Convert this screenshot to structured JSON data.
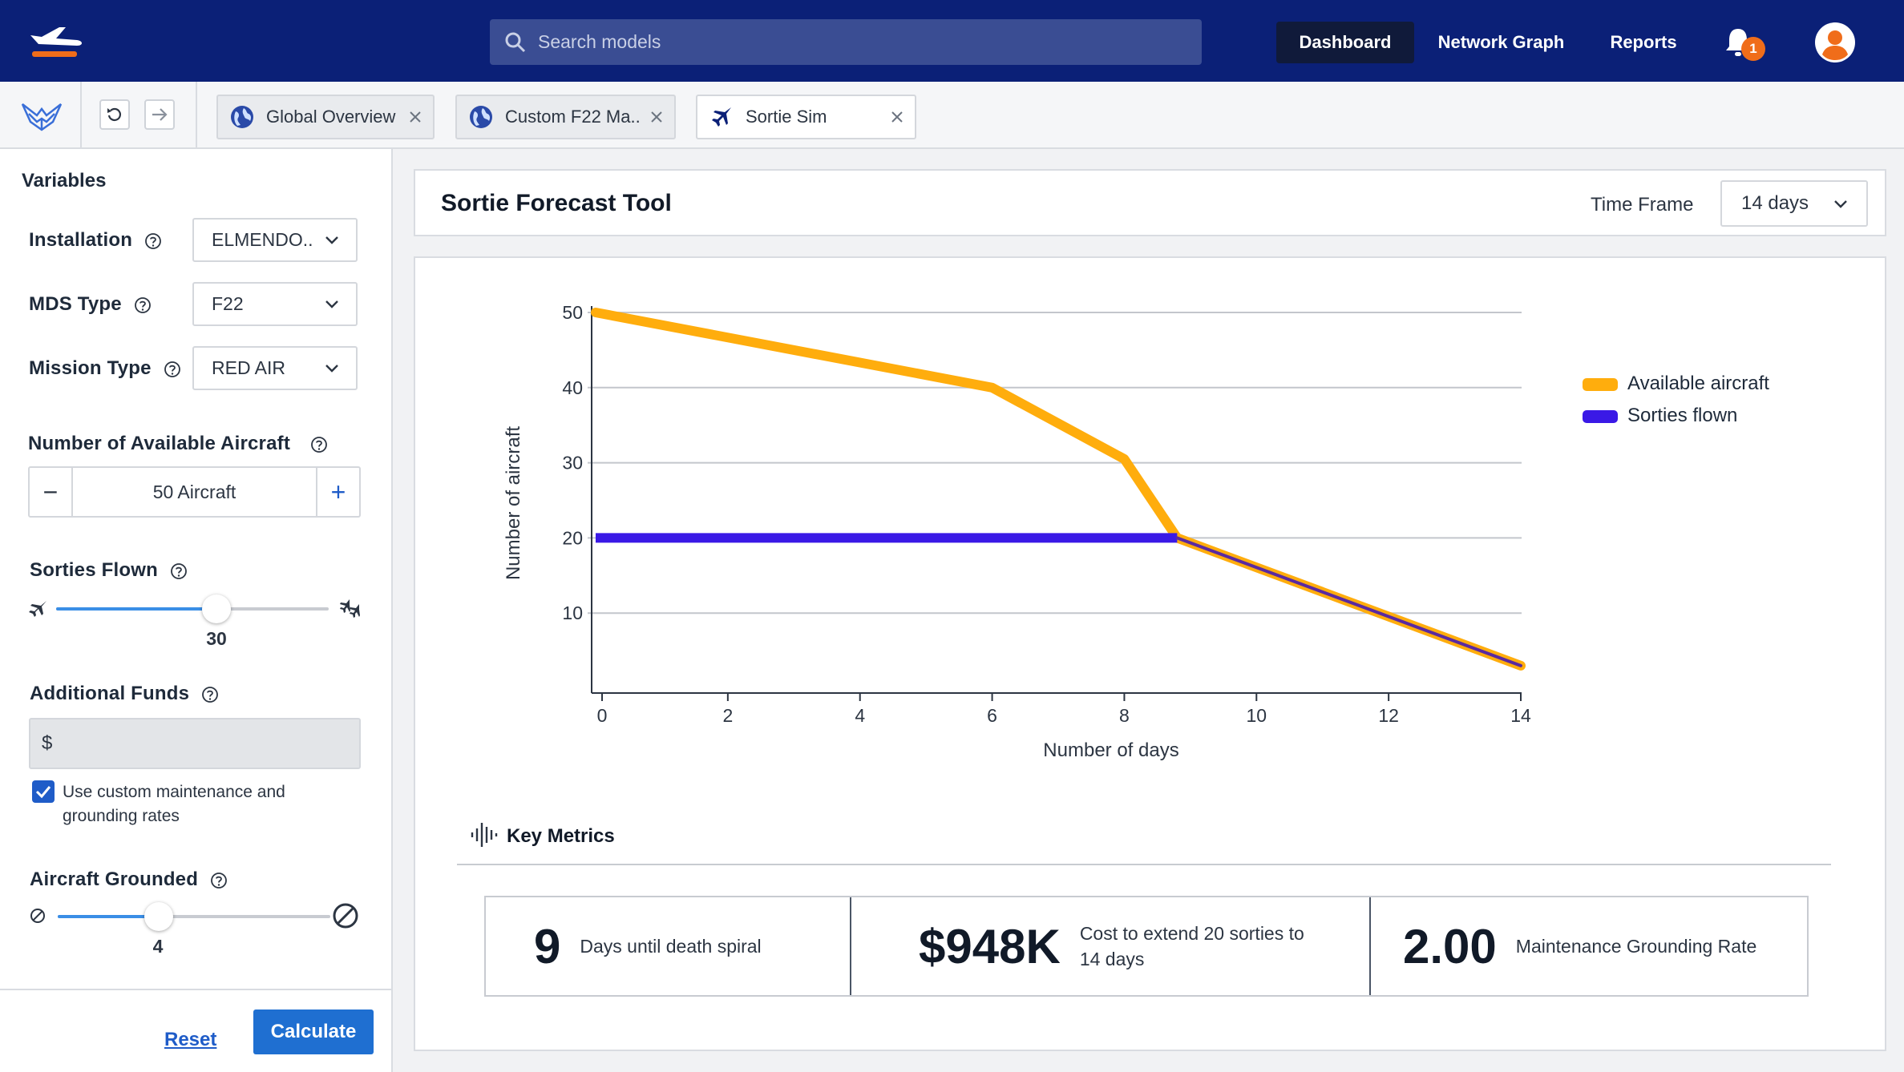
{
  "topbar": {
    "search_placeholder": "Search models",
    "nav": {
      "dashboard": "Dashboard",
      "network_graph": "Network Graph",
      "reports": "Reports"
    },
    "notifications_count": "1",
    "colors": {
      "bar": "#0b2077",
      "accent": "#f06d1a"
    }
  },
  "tabs": [
    {
      "label": "Global Overview",
      "icon": "globe-icon"
    },
    {
      "label": "Custom F22 Ma..",
      "icon": "globe-icon"
    },
    {
      "label": "Sortie Sim",
      "icon": "jet-icon"
    }
  ],
  "sidebar": {
    "title": "Variables",
    "installation": {
      "label": "Installation",
      "value": "ELMENDO.."
    },
    "mds_type": {
      "label": "MDS Type",
      "value": "F22"
    },
    "mission_type": {
      "label": "Mission Type",
      "value": "RED AIR"
    },
    "available_aircraft": {
      "label": "Number of Available Aircraft",
      "value": "50 Aircraft",
      "minus": "−",
      "plus": "+"
    },
    "sorties_flown": {
      "label": "Sorties Flown",
      "value": "30",
      "fraction": 0.59
    },
    "additional_funds": {
      "label": "Additional Funds",
      "value": "$"
    },
    "custom_rates": {
      "label": "Use custom maintenance and grounding rates",
      "checked": true
    },
    "aircraft_grounded": {
      "label": "Aircraft Grounded",
      "value": "4",
      "fraction": 0.33
    },
    "reset": "Reset",
    "calculate": "Calculate"
  },
  "main": {
    "title": "Sortie Forecast Tool",
    "time_frame_label": "Time Frame",
    "time_frame_value": "14 days"
  },
  "chart_data": {
    "type": "line",
    "title": "",
    "xlabel": "Number of days",
    "ylabel": "Number of aircraft",
    "xlim": [
      0,
      14
    ],
    "ylim": [
      0,
      50
    ],
    "x_ticks": [
      0,
      2,
      4,
      6,
      8,
      10,
      12,
      14
    ],
    "y_ticks": [
      10,
      20,
      30,
      40,
      50
    ],
    "grid": "horizontal",
    "legend": "top-right",
    "series": [
      {
        "name": "Available aircraft",
        "color": "#ffad0d",
        "points": [
          [
            0,
            50
          ],
          [
            6,
            40
          ],
          [
            8,
            30.5
          ],
          [
            8.8,
            20
          ],
          [
            14,
            3
          ]
        ]
      },
      {
        "name": "Sorties flown",
        "color": "#3a19e6",
        "points": [
          [
            0,
            20
          ],
          [
            8.8,
            20
          ],
          [
            14,
            3
          ]
        ]
      }
    ]
  },
  "key_metrics": {
    "title": "Key Metrics",
    "items": [
      {
        "value": "9",
        "desc": "Days until death spiral"
      },
      {
        "value": "$948K",
        "desc": "Cost to extend 20 sorties to 14 days"
      },
      {
        "value": "2.00",
        "desc": "Maintenance Grounding Rate"
      }
    ]
  }
}
